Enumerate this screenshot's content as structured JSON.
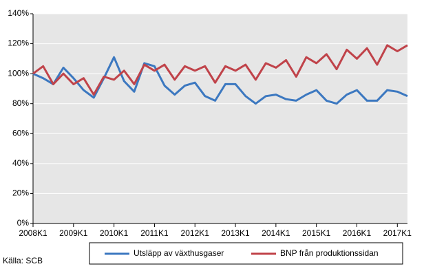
{
  "chart_data": {
    "type": "line",
    "categories": [
      "2008K1",
      null,
      null,
      null,
      "2009K1",
      null,
      null,
      null,
      "2010K1",
      null,
      null,
      null,
      "2011K1",
      null,
      null,
      null,
      "2012K1",
      null,
      null,
      null,
      "2013K1",
      null,
      null,
      null,
      "2014K1",
      null,
      null,
      null,
      "2015K1",
      null,
      null,
      null,
      "2016K1",
      null,
      null,
      null,
      "2017K1",
      null
    ],
    "series": [
      {
        "name": "Utsläpp av växthusgaser",
        "color": "#3c78c0",
        "values": [
          100,
          97,
          93,
          104,
          97,
          89,
          84,
          97,
          111,
          95,
          88,
          107,
          105,
          92,
          86,
          92,
          94,
          85,
          82,
          93,
          93,
          85,
          80,
          85,
          86,
          83,
          82,
          86,
          89,
          82,
          80,
          86,
          89,
          82,
          82,
          89,
          88,
          85
        ]
      },
      {
        "name": "BNP från produktionssidan",
        "color": "#c0434a",
        "values": [
          100,
          105,
          93,
          100,
          93,
          97,
          86,
          98,
          96,
          102,
          93,
          106,
          102,
          106,
          96,
          105,
          102,
          105,
          94,
          105,
          102,
          106,
          96,
          107,
          104,
          109,
          98,
          111,
          107,
          113,
          103,
          116,
          110,
          117,
          106,
          119,
          115,
          119
        ]
      }
    ],
    "ylim": [
      0,
      140
    ],
    "yticks": [
      {
        "value": 0,
        "label": "0%"
      },
      {
        "value": 20,
        "label": "20%"
      },
      {
        "value": 40,
        "label": "40%"
      },
      {
        "value": 60,
        "label": "60%"
      },
      {
        "value": 80,
        "label": "80%"
      },
      {
        "value": 100,
        "label": "100%"
      },
      {
        "value": 120,
        "label": "120%"
      },
      {
        "value": 140,
        "label": "140%"
      }
    ],
    "grid": true,
    "legend": "bottom",
    "source": "Källa: SCB"
  }
}
